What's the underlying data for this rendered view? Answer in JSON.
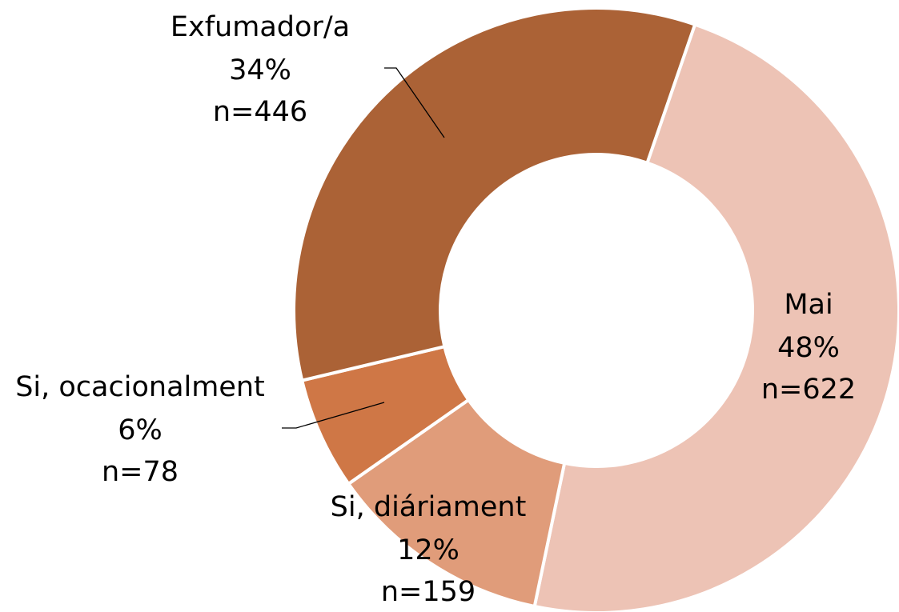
{
  "chart_data": {
    "type": "donut",
    "categories": [
      "Mai",
      "Si, diáriament",
      "Si, ocacionalment",
      "Exfumador/a"
    ],
    "values": [
      48,
      12,
      6,
      34
    ],
    "value_labels": [
      "48%",
      "12%",
      "6%",
      "34%"
    ],
    "counts": [
      622,
      159,
      78,
      446
    ],
    "count_labels": [
      "n=622",
      "n=159",
      "n=78",
      "n=446"
    ],
    "colors": [
      "#EDC3B5",
      "#E09C7A",
      "#CF7746",
      "#AB6236"
    ]
  }
}
